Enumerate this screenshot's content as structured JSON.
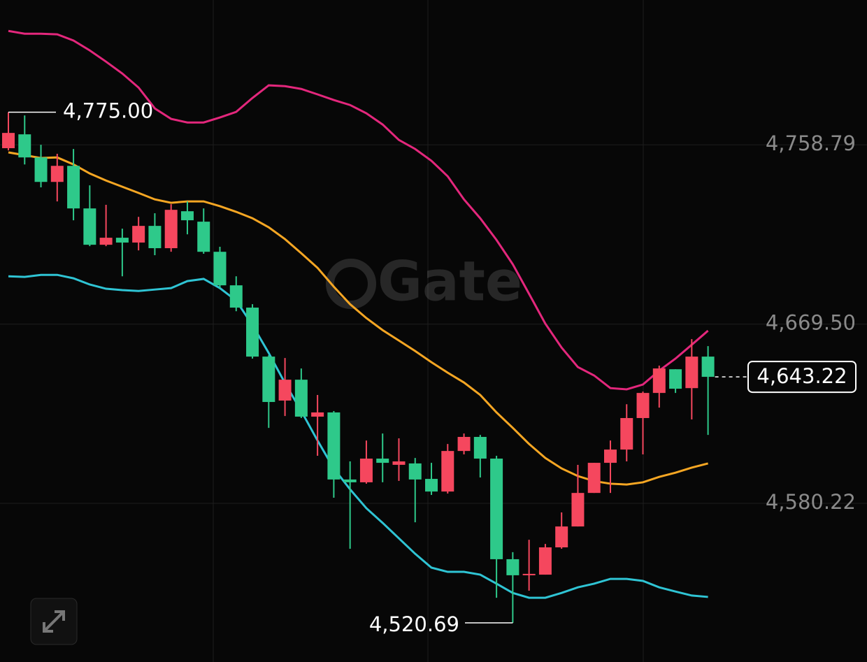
{
  "chart_data": {
    "type": "candlestick",
    "watermark": "Gate",
    "ylim": [
      4501.2,
      4830.9
    ],
    "yticks": [
      {
        "value": 4758.79,
        "label": "4,758.79"
      },
      {
        "value": 4669.5,
        "label": "4,669.50"
      },
      {
        "value": 4580.22,
        "label": "4,580.22"
      }
    ],
    "grid": true,
    "up_color": "#f5475e",
    "down_color": "#2ec98a",
    "open": [
      4757.1,
      4764.0,
      4752.5,
      4740.3,
      4748.3,
      4727.1,
      4709.0,
      4712.5,
      4710.1,
      4718.4,
      4707.3,
      4725.7,
      4720.5,
      4705.5,
      4688.8,
      4677.7,
      4653.3,
      4631.4,
      4641.8,
      4623.4,
      4625.5,
      4592.1,
      4590.7,
      4602.5,
      4599.4,
      4600.1,
      4592.4,
      4586.1,
      4606.3,
      4613.3,
      4602.5,
      4552.4,
      4544.7,
      4544.7,
      4558.3,
      4568.7,
      4585.4,
      4600.4,
      4607.0,
      4622.7,
      4635.2,
      4647.0,
      4637.6,
      4653.3
    ],
    "high": [
      4775.0,
      4773.4,
      4758.8,
      4754.3,
      4756.7,
      4738.6,
      4728.9,
      4717.0,
      4722.9,
      4724.7,
      4729.2,
      4730.6,
      4727.1,
      4708.0,
      4693.3,
      4679.4,
      4654.0,
      4652.6,
      4647.4,
      4634.2,
      4626.2,
      4601.1,
      4611.5,
      4615.0,
      4612.6,
      4602.8,
      4600.4,
      4609.8,
      4615.0,
      4614.3,
      4603.9,
      4555.9,
      4562.1,
      4560.0,
      4575.7,
      4599.4,
      4600.4,
      4611.5,
      4629.6,
      4635.9,
      4648.8,
      4647.0,
      4662.0,
      4658.5
    ],
    "low": [
      4756.0,
      4749.0,
      4737.6,
      4730.6,
      4721.2,
      4708.3,
      4708.3,
      4693.3,
      4706.2,
      4703.8,
      4705.5,
      4714.2,
      4704.5,
      4687.4,
      4675.9,
      4652.3,
      4617.8,
      4623.7,
      4622.7,
      4603.9,
      4583.0,
      4557.6,
      4590.0,
      4590.7,
      4591.4,
      4570.8,
      4584.4,
      4585.1,
      4604.6,
      4593.1,
      4533.2,
      4520.69,
      4536.7,
      4544.7,
      4557.6,
      4568.7,
      4585.4,
      4585.4,
      4601.1,
      4604.6,
      4627.9,
      4635.2,
      4622.0,
      4614.3
    ],
    "close": [
      4764.7,
      4752.5,
      4740.3,
      4748.3,
      4727.1,
      4709.0,
      4712.5,
      4710.1,
      4718.4,
      4707.3,
      4726.4,
      4721.2,
      4705.5,
      4688.8,
      4677.7,
      4653.3,
      4630.7,
      4641.8,
      4623.4,
      4625.5,
      4592.1,
      4590.7,
      4602.5,
      4600.4,
      4601.1,
      4592.1,
      4586.1,
      4606.3,
      4613.3,
      4602.5,
      4552.4,
      4544.4,
      4545.1,
      4558.3,
      4568.7,
      4585.4,
      4600.4,
      4607.0,
      4622.7,
      4635.2,
      4647.4,
      4637.3,
      4653.3,
      4643.22
    ],
    "bands": [
      {
        "color": "#e3277c",
        "values": [
          4815.5,
          4814.1,
          4814.1,
          4813.8,
          4810.7,
          4805.8,
          4800.2,
          4794.3,
          4787.3,
          4776.9,
          4771.7,
          4769.9,
          4769.9,
          4772.4,
          4775.2,
          4782.1,
          4788.4,
          4788.0,
          4786.6,
          4783.9,
          4781.1,
          4778.6,
          4774.5,
          4768.9,
          4761.2,
          4756.7,
          4750.8,
          4743.1,
          4731.6,
          4722.2,
          4711.4,
          4699.3,
          4684.6,
          4669.7,
          4657.8,
          4648.1,
          4643.9,
          4637.6,
          4637.0,
          4639.4,
          4646.3,
          4652.3,
          4659.2,
          4666.2
        ]
      },
      {
        "color": "#f5a623",
        "values": [
          4755.0,
          4753.6,
          4752.2,
          4752.5,
          4749.0,
          4744.5,
          4741.0,
          4737.9,
          4734.8,
          4731.6,
          4729.9,
          4730.6,
          4730.6,
          4728.2,
          4725.4,
          4722.2,
          4717.7,
          4711.8,
          4704.8,
          4697.5,
          4688.1,
          4679.4,
          4672.5,
          4666.5,
          4661.3,
          4656.1,
          4650.5,
          4645.3,
          4640.4,
          4634.2,
          4625.5,
          4617.8,
          4609.8,
          4602.8,
          4597.6,
          4593.8,
          4591.3,
          4590.0,
          4589.6,
          4590.7,
          4593.4,
          4595.5,
          4598.0,
          4600.1
        ]
      },
      {
        "color": "#2fc4d4",
        "values": [
          4693.3,
          4693.0,
          4694.0,
          4694.0,
          4692.3,
          4689.2,
          4687.1,
          4686.4,
          4686.0,
          4686.7,
          4687.4,
          4690.9,
          4692.0,
          4687.4,
          4681.2,
          4669.0,
          4655.1,
          4640.1,
          4626.2,
          4611.5,
          4597.6,
          4587.2,
          4577.8,
          4570.5,
          4562.8,
          4555.1,
          4548.2,
          4546.1,
          4546.1,
          4544.7,
          4540.2,
          4535.6,
          4533.2,
          4533.2,
          4535.6,
          4538.4,
          4540.2,
          4542.6,
          4542.6,
          4541.6,
          4538.4,
          4536.3,
          4534.3,
          4533.6
        ]
      }
    ],
    "max_label": {
      "value": 4775.0,
      "label": "4,775.00"
    },
    "min_label": {
      "value": 4520.69,
      "label": "4,520.69"
    },
    "last_label": {
      "value": 4643.22,
      "label": "4,643.22"
    }
  }
}
